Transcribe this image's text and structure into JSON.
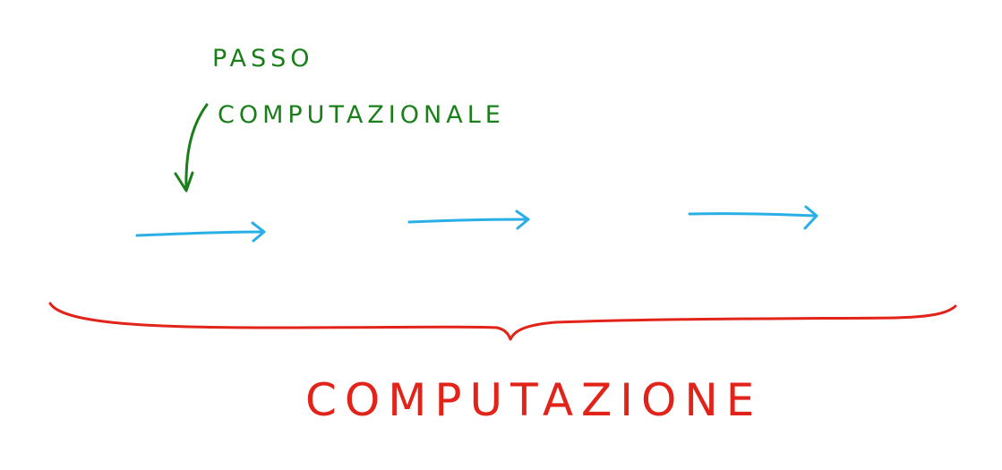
{
  "annotation": {
    "line1": "PASSO",
    "line2": "COMPUTAZIONALE",
    "color": "#1a7f1a"
  },
  "steps": {
    "count": 3,
    "color": "#29aee6"
  },
  "brace": {
    "color": "#e2231a"
  },
  "title": {
    "text": "COMPUTAZIONE",
    "color": "#e2231a"
  }
}
